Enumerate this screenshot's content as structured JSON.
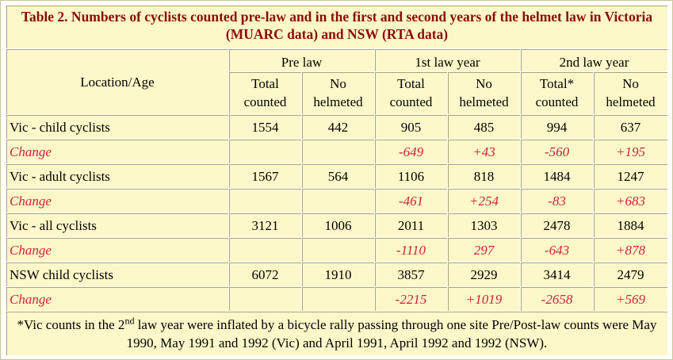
{
  "table": {
    "title": "Table 2. Numbers of cyclists counted pre-law and in the first and second years of the helmet law in Victoria (MUARC data) and NSW (RTA data)",
    "location_header": "Location/Age",
    "group_headers": [
      "Pre law",
      "1st law year",
      "2nd law year"
    ],
    "sub_headers": [
      [
        "Total",
        "counted"
      ],
      [
        "No",
        "helmeted"
      ],
      [
        "Total",
        "counted"
      ],
      [
        "No",
        "helmeted"
      ],
      [
        "Total*",
        "counted"
      ],
      [
        "No",
        "helmeted"
      ]
    ],
    "rows": [
      {
        "label": "Vic - child cyclists",
        "values": [
          "1554",
          "442",
          "905",
          "485",
          "994",
          "637"
        ],
        "is_change": false
      },
      {
        "label": "Change",
        "values": [
          "",
          "",
          "-649",
          "+43",
          "-560",
          "+195"
        ],
        "is_change": true
      },
      {
        "label": "Vic - adult cyclists",
        "values": [
          "1567",
          "564",
          "1106",
          "818",
          "1484",
          "1247"
        ],
        "is_change": false
      },
      {
        "label": "Change",
        "values": [
          "",
          "",
          "-461",
          "+254",
          "-83",
          "+683"
        ],
        "is_change": true
      },
      {
        "label": "Vic - all cyclists",
        "values": [
          "3121",
          "1006",
          "2011",
          "1303",
          "2478",
          "1884"
        ],
        "is_change": false
      },
      {
        "label": "Change",
        "values": [
          "",
          "",
          "-1110",
          "297",
          "-643",
          "+878"
        ],
        "is_change": true
      },
      {
        "label": "NSW child cyclists",
        "values": [
          "6072",
          "1910",
          "3857",
          "2929",
          "3414",
          "2479"
        ],
        "is_change": false
      },
      {
        "label": "Change",
        "values": [
          "",
          "",
          "-2215",
          "+1019",
          "-2658",
          "+569"
        ],
        "is_change": true
      }
    ],
    "footnote": {
      "prefix": "*Vic counts in the 2",
      "sup": "nd",
      "suffix": " law year were inflated by a bicycle rally passing through one site Pre/Post-law counts were May 1990, May 1991 and 1992 (Vic) and April 1991, April 1992 and 1992 (NSW)."
    }
  },
  "colors": {
    "cell_background": "#fdf8c9",
    "title_text": "#8c0a0a",
    "change_text": "#d0203a",
    "border_dark": "#a7a37c"
  }
}
